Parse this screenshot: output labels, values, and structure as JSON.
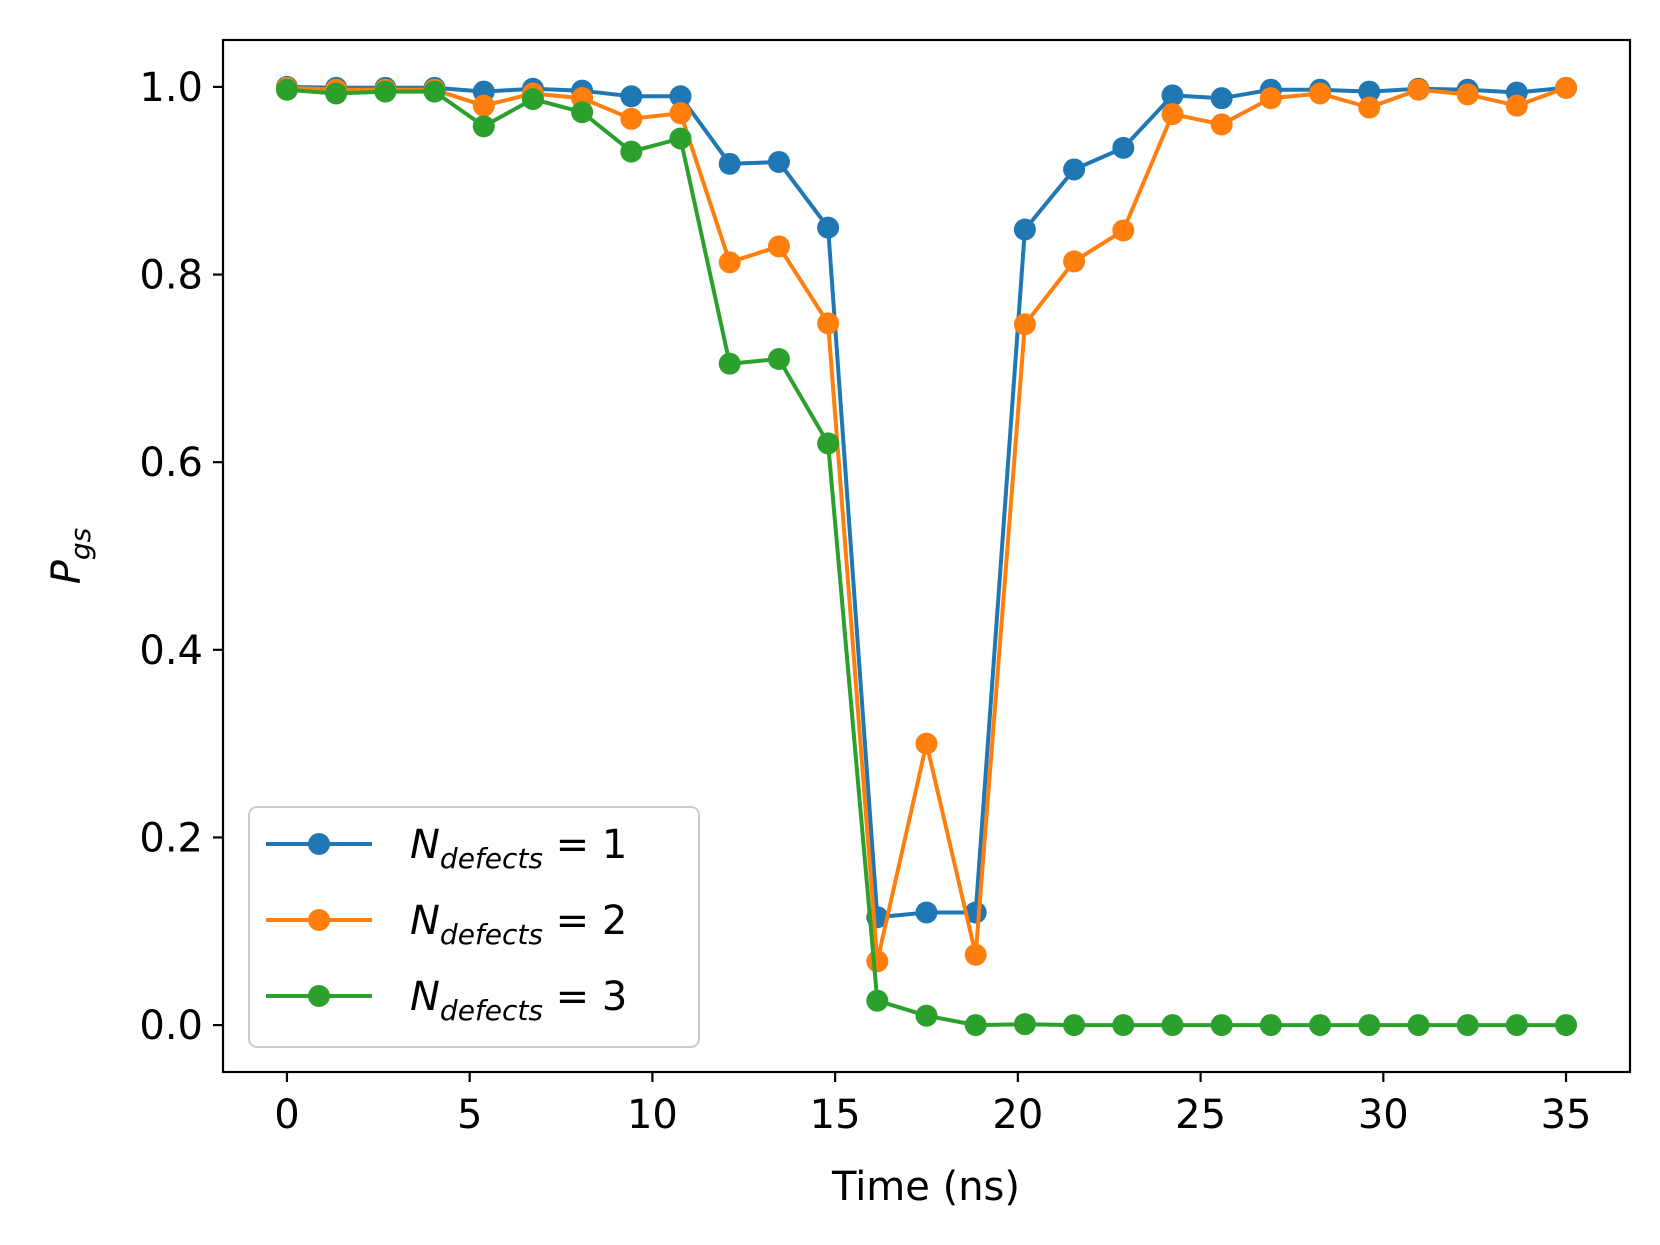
{
  "chart_data": {
    "type": "line",
    "title": "",
    "xlabel": "Time (ns)",
    "ylabel": {
      "main": "P",
      "sub": "gs"
    },
    "xlim": [
      -1.75,
      36.75
    ],
    "ylim": [
      -0.05,
      1.05
    ],
    "xticks": [
      0,
      5,
      10,
      15,
      20,
      25,
      30,
      35
    ],
    "yticks": [
      0.0,
      0.2,
      0.4,
      0.6,
      0.8,
      1.0
    ],
    "xtick_labels": [
      "0",
      "5",
      "10",
      "15",
      "20",
      "25",
      "30",
      "35"
    ],
    "ytick_labels": [
      "0.0",
      "0.2",
      "0.4",
      "0.6",
      "0.8",
      "1.0"
    ],
    "legend_position": "lower-left",
    "x": [
      0,
      1.346,
      2.692,
      4.038,
      5.385,
      6.731,
      8.077,
      9.423,
      10.769,
      12.115,
      13.462,
      14.808,
      16.154,
      17.5,
      18.846,
      20.192,
      21.538,
      22.885,
      24.231,
      25.577,
      26.923,
      28.269,
      29.615,
      30.962,
      32.308,
      33.654,
      35.0
    ],
    "series": [
      {
        "name": "N_defects = 1",
        "label_main": "N",
        "label_sub": "defects",
        "label_rest": " = 1",
        "color": "#1f77b4",
        "values": [
          1.0,
          0.999,
          0.999,
          0.999,
          0.995,
          0.998,
          0.996,
          0.99,
          0.99,
          0.918,
          0.92,
          0.85,
          0.115,
          0.12,
          0.12,
          0.848,
          0.912,
          0.935,
          0.991,
          0.988,
          0.997,
          0.997,
          0.995,
          0.998,
          0.997,
          0.994,
          0.999
        ]
      },
      {
        "name": "N_defects = 2",
        "label_main": "N",
        "label_sub": "defects",
        "label_rest": " = 2",
        "color": "#ff7f0e",
        "values": [
          0.999,
          0.997,
          0.997,
          0.997,
          0.98,
          0.993,
          0.988,
          0.966,
          0.972,
          0.813,
          0.83,
          0.748,
          0.068,
          0.3,
          0.075,
          0.747,
          0.814,
          0.847,
          0.971,
          0.96,
          0.988,
          0.993,
          0.978,
          0.997,
          0.992,
          0.98,
          0.999
        ]
      },
      {
        "name": "N_defects = 3",
        "label_main": "N",
        "label_sub": "defects",
        "label_rest": " = 3",
        "color": "#2ca02c",
        "values": [
          0.997,
          0.993,
          0.995,
          0.995,
          0.958,
          0.987,
          0.973,
          0.931,
          0.945,
          0.705,
          0.71,
          0.62,
          0.026,
          0.01,
          0.0,
          0.001,
          0.0,
          0.0,
          0.0,
          0.0,
          0.0,
          0.0,
          0.0,
          0.0,
          0.0,
          0.0,
          0.0
        ]
      }
    ]
  }
}
